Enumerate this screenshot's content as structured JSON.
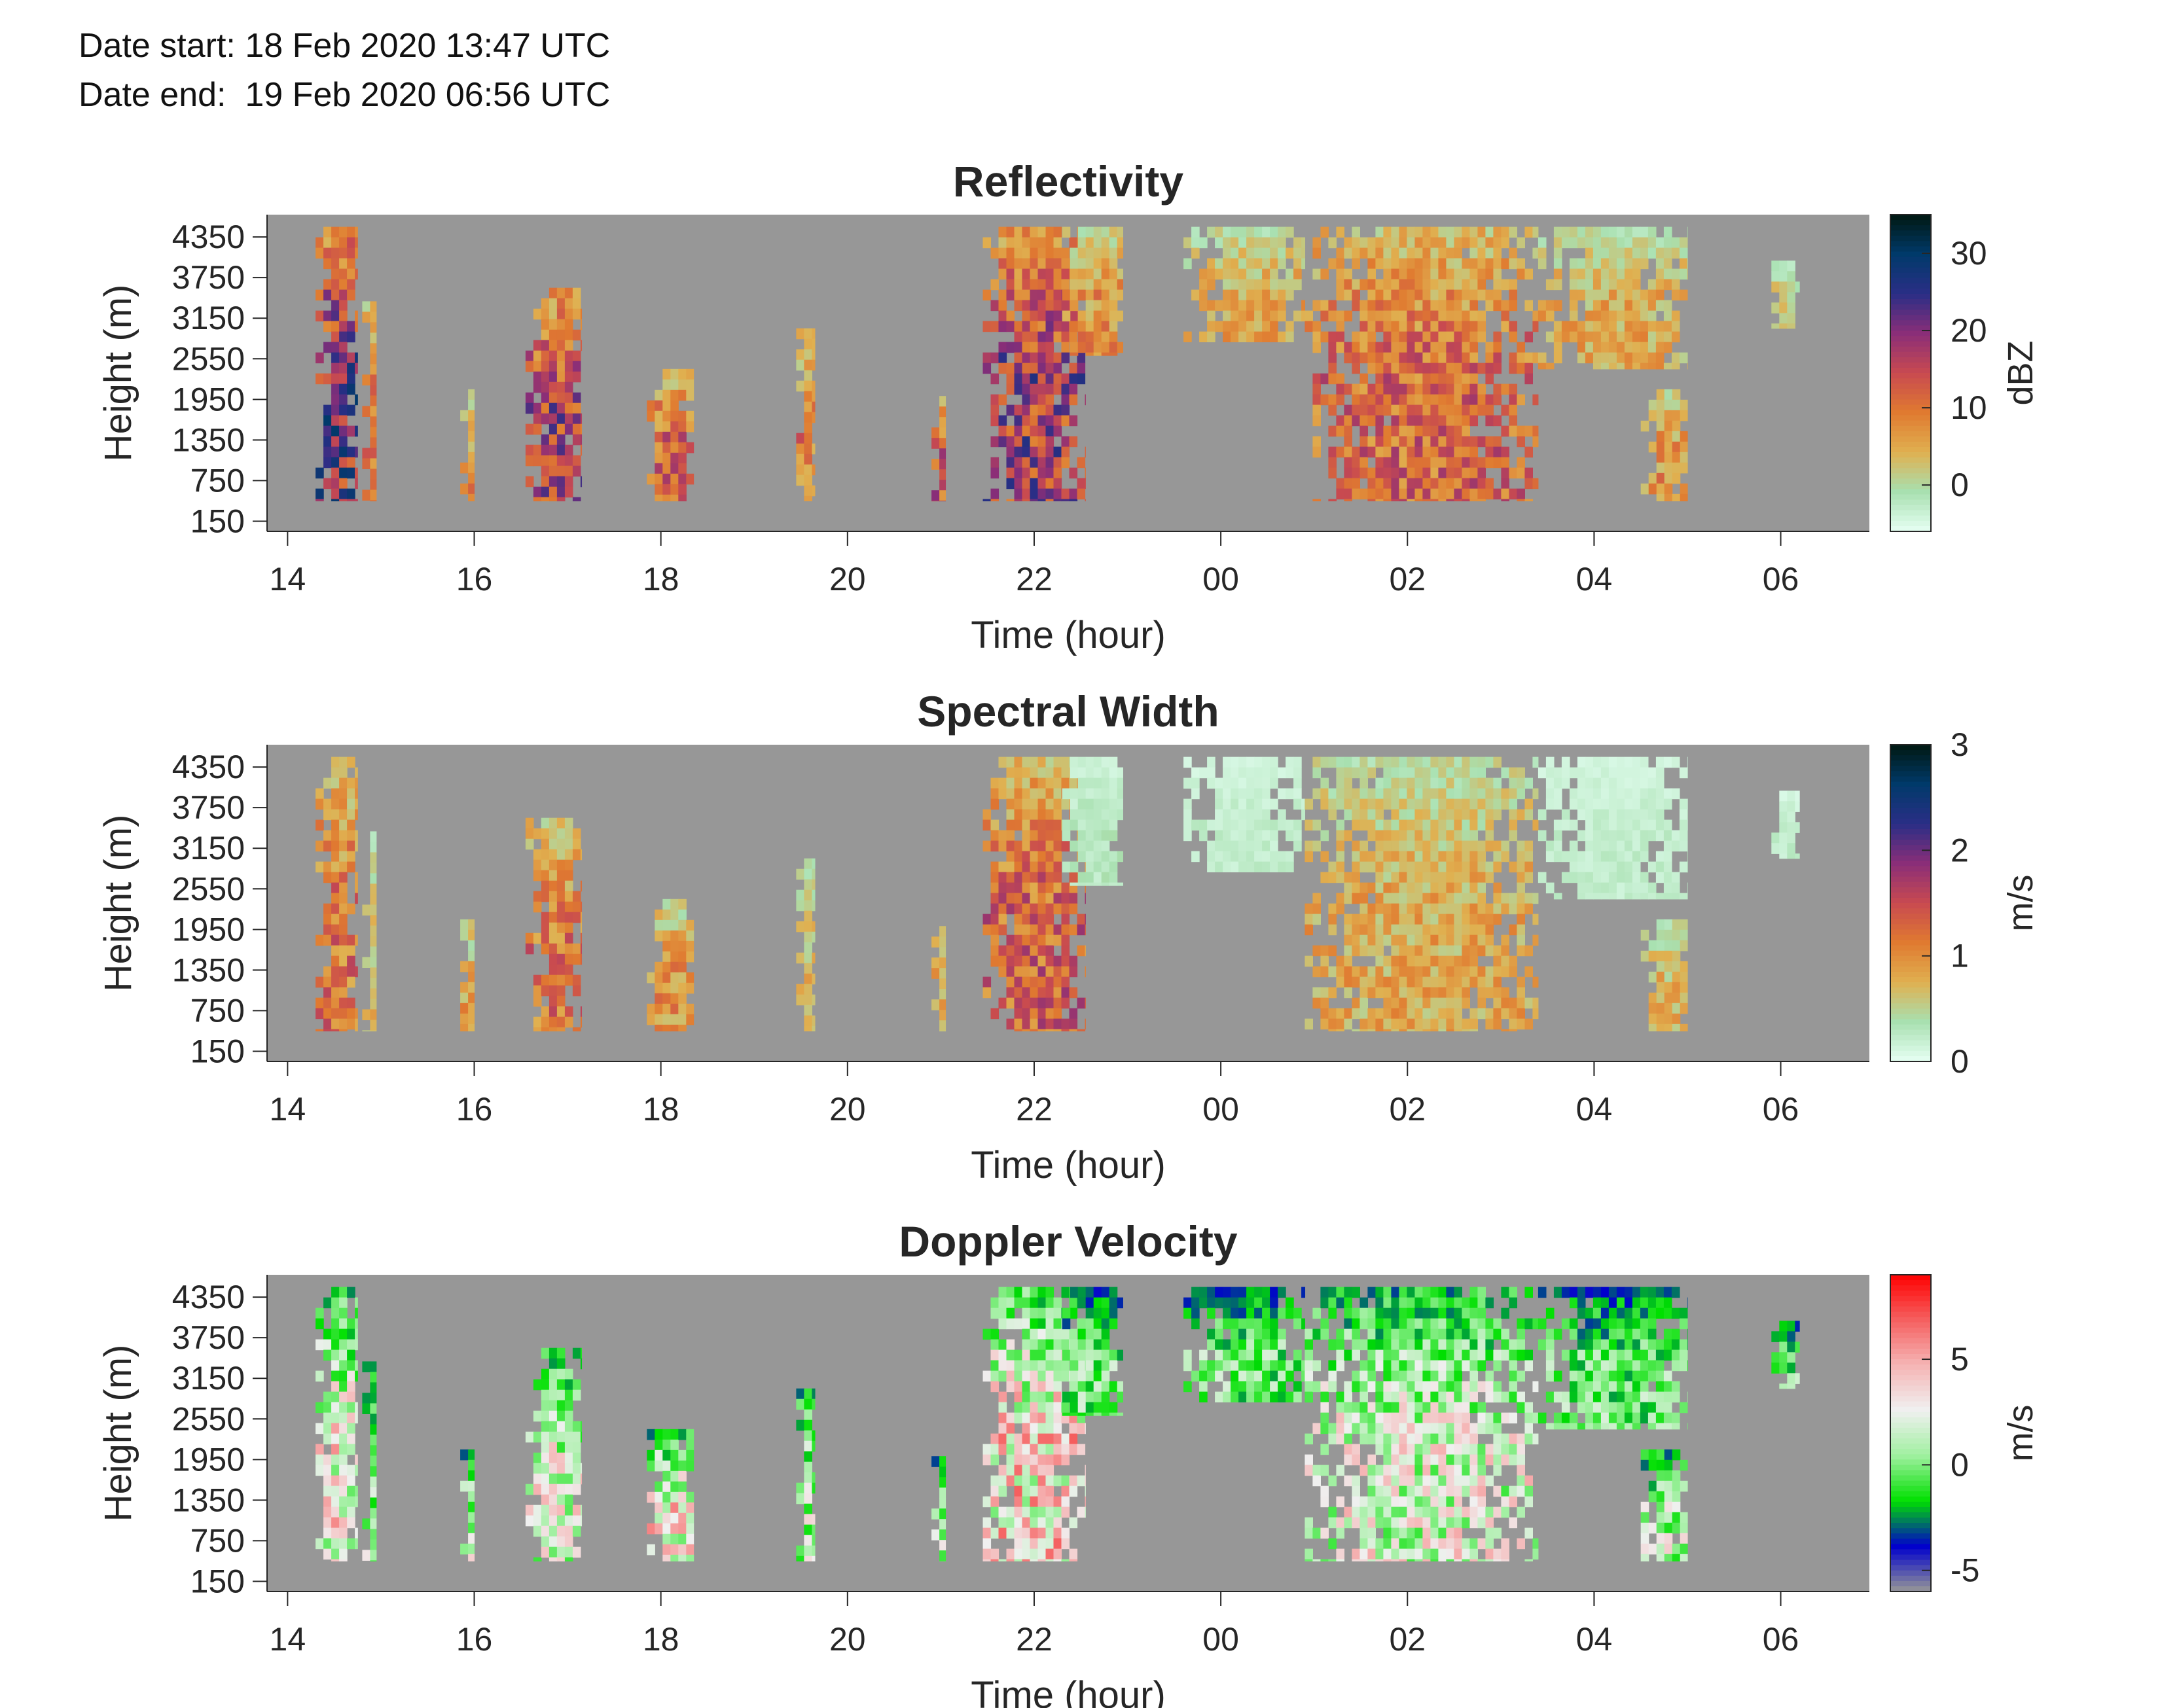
{
  "header": {
    "date_start": "Date start: 18 Feb 2020 13:47 UTC",
    "date_end": "Date end:  19 Feb 2020 06:56 UTC"
  },
  "chart_data": [
    {
      "type": "heatmap",
      "title": "Reflectivity",
      "xlabel": "Time (hour)",
      "ylabel": "Height (m)",
      "x_tick_labels": [
        "14",
        "16",
        "18",
        "20",
        "22",
        "00",
        "02",
        "04",
        "06"
      ],
      "y_tick_labels": [
        "150",
        "750",
        "1350",
        "1950",
        "2550",
        "3150",
        "3750",
        "4350"
      ],
      "colorbar": {
        "label": "dBZ",
        "ticks": [
          "30",
          "20",
          "10",
          "0"
        ],
        "tick_values": [
          30,
          20,
          10,
          0
        ],
        "range": [
          -6,
          35
        ],
        "colors": [
          "#e6fff4",
          "#a8e0b0",
          "#e0b050",
          "#e07a30",
          "#c84a50",
          "#8a2e78",
          "#2a2e86",
          "#003a6a",
          "#001810"
        ]
      },
      "no_data_color": "#979797",
      "echo_regions": [
        {
          "t0": 14.3,
          "t1": 14.75,
          "h0": 450,
          "h1": 4500,
          "peak": 30
        },
        {
          "t0": 14.8,
          "t1": 14.95,
          "h0": 450,
          "h1": 3400,
          "peak": 15
        },
        {
          "t0": 15.85,
          "t1": 16.0,
          "h0": 450,
          "h1": 2100,
          "peak": 12
        },
        {
          "t0": 16.55,
          "t1": 17.15,
          "h0": 450,
          "h1": 3600,
          "peak": 24
        },
        {
          "t0": 17.85,
          "t1": 18.35,
          "h0": 450,
          "h1": 2400,
          "peak": 18
        },
        {
          "t0": 19.45,
          "t1": 19.65,
          "h0": 450,
          "h1": 3000,
          "peak": 15
        },
        {
          "t0": 20.9,
          "t1": 21.05,
          "h0": 450,
          "h1": 2000,
          "peak": 20
        },
        {
          "t0": 21.45,
          "t1": 22.55,
          "h0": 450,
          "h1": 4500,
          "peak": 26
        },
        {
          "t0": 22.3,
          "t1": 22.95,
          "h0": 2600,
          "h1": 4500,
          "peak": 12
        },
        {
          "t0": 23.6,
          "t1": 24.9,
          "h0": 2800,
          "h1": 4500,
          "peak": 9
        },
        {
          "t0": 24.9,
          "t1": 27.4,
          "h0": 450,
          "h1": 4500,
          "peak": 18
        },
        {
          "t0": 27.4,
          "t1": 29.0,
          "h0": 2400,
          "h1": 4500,
          "peak": 9
        },
        {
          "t0": 28.5,
          "t1": 29.0,
          "h0": 450,
          "h1": 2100,
          "peak": 12
        },
        {
          "t0": 29.9,
          "t1": 30.2,
          "h0": 3000,
          "h1": 4000,
          "peak": 6
        }
      ]
    },
    {
      "type": "heatmap",
      "title": "Spectral Width",
      "xlabel": "Time (hour)",
      "ylabel": "Height (m)",
      "x_tick_labels": [
        "14",
        "16",
        "18",
        "20",
        "22",
        "00",
        "02",
        "04",
        "06"
      ],
      "y_tick_labels": [
        "150",
        "750",
        "1350",
        "1950",
        "2550",
        "3150",
        "3750",
        "4350"
      ],
      "colorbar": {
        "label": "m/s",
        "ticks": [
          "3",
          "2",
          "1",
          "0"
        ],
        "tick_values": [
          3,
          2,
          1,
          0
        ],
        "range": [
          0,
          3
        ],
        "colors": [
          "#e6fff4",
          "#a8e0b0",
          "#e0b050",
          "#e07a30",
          "#c84a50",
          "#8a2e78",
          "#2a2e86",
          "#003a6a",
          "#001810"
        ]
      },
      "no_data_color": "#979797",
      "echo_regions": [
        {
          "t0": 14.3,
          "t1": 14.75,
          "h0": 450,
          "h1": 4500,
          "peak": 1.6
        },
        {
          "t0": 14.8,
          "t1": 14.95,
          "h0": 450,
          "h1": 3400,
          "peak": 1.0
        },
        {
          "t0": 15.85,
          "t1": 16.0,
          "h0": 450,
          "h1": 2100,
          "peak": 1.2
        },
        {
          "t0": 16.55,
          "t1": 17.15,
          "h0": 450,
          "h1": 3600,
          "peak": 1.6
        },
        {
          "t0": 17.85,
          "t1": 18.35,
          "h0": 450,
          "h1": 2400,
          "peak": 1.3
        },
        {
          "t0": 19.45,
          "t1": 19.65,
          "h0": 450,
          "h1": 3000,
          "peak": 1.0
        },
        {
          "t0": 20.9,
          "t1": 21.05,
          "h0": 450,
          "h1": 2000,
          "peak": 1.2
        },
        {
          "t0": 21.45,
          "t1": 22.55,
          "h0": 450,
          "h1": 4500,
          "peak": 1.8
        },
        {
          "t0": 22.3,
          "t1": 22.95,
          "h0": 2600,
          "h1": 4500,
          "peak": 0.4
        },
        {
          "t0": 23.6,
          "t1": 24.9,
          "h0": 2800,
          "h1": 4500,
          "peak": 0.3
        },
        {
          "t0": 24.9,
          "t1": 27.4,
          "h0": 450,
          "h1": 4500,
          "peak": 1.1
        },
        {
          "t0": 27.4,
          "t1": 29.0,
          "h0": 2400,
          "h1": 4500,
          "peak": 0.3
        },
        {
          "t0": 28.5,
          "t1": 29.0,
          "h0": 450,
          "h1": 2100,
          "peak": 1.0
        },
        {
          "t0": 29.9,
          "t1": 30.2,
          "h0": 3000,
          "h1": 4000,
          "peak": 0.3
        }
      ]
    },
    {
      "type": "heatmap",
      "title": "Doppler Velocity",
      "xlabel": "Time (hour)",
      "ylabel": "Height (m)",
      "x_tick_labels": [
        "14",
        "16",
        "18",
        "20",
        "22",
        "00",
        "02",
        "04",
        "06"
      ],
      "y_tick_labels": [
        "150",
        "750",
        "1350",
        "1950",
        "2550",
        "3150",
        "3750",
        "4350"
      ],
      "colorbar": {
        "label": "m/s",
        "ticks": [
          "5",
          "0",
          "-5"
        ],
        "tick_values": [
          5,
          0,
          -5
        ],
        "range": [
          -6,
          9
        ],
        "colors": [
          "#979797",
          "#0000cc",
          "#00e000",
          "#a0f0a0",
          "#f0f0f0",
          "#f5b5b5",
          "#f56060",
          "#ff0000"
        ]
      },
      "no_data_color": "#979797",
      "echo_regions": [
        {
          "t0": 14.3,
          "t1": 14.75,
          "h0": 450,
          "h1": 4500,
          "peak": 6
        },
        {
          "t0": 14.8,
          "t1": 14.95,
          "h0": 450,
          "h1": 3400,
          "peak": 3
        },
        {
          "t0": 15.85,
          "t1": 16.0,
          "h0": 450,
          "h1": 2100,
          "peak": 4
        },
        {
          "t0": 16.55,
          "t1": 17.15,
          "h0": 450,
          "h1": 3600,
          "peak": 5
        },
        {
          "t0": 17.85,
          "t1": 18.35,
          "h0": 450,
          "h1": 2400,
          "peak": 6
        },
        {
          "t0": 19.45,
          "t1": 19.65,
          "h0": 450,
          "h1": 3000,
          "peak": 4
        },
        {
          "t0": 20.9,
          "t1": 21.05,
          "h0": 450,
          "h1": 2000,
          "peak": 4
        },
        {
          "t0": 21.45,
          "t1": 22.55,
          "h0": 450,
          "h1": 4500,
          "peak": 7
        },
        {
          "t0": 22.3,
          "t1": 22.95,
          "h0": 2600,
          "h1": 4500,
          "peak": 2
        },
        {
          "t0": 23.6,
          "t1": 24.9,
          "h0": 2800,
          "h1": 4500,
          "peak": 2
        },
        {
          "t0": 24.9,
          "t1": 27.4,
          "h0": 450,
          "h1": 4500,
          "peak": 5
        },
        {
          "t0": 27.4,
          "t1": 29.0,
          "h0": 2400,
          "h1": 4500,
          "peak": 2
        },
        {
          "t0": 28.5,
          "t1": 29.0,
          "h0": 450,
          "h1": 2100,
          "peak": 4
        },
        {
          "t0": 29.9,
          "t1": 30.2,
          "h0": 3000,
          "h1": 4000,
          "peak": 2
        }
      ]
    }
  ]
}
